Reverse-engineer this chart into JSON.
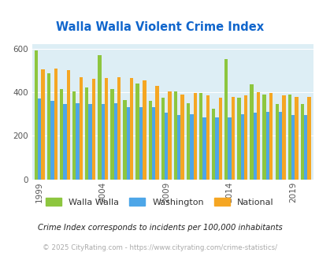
{
  "title": "Walla Walla Violent Crime Index",
  "years": [
    1999,
    2000,
    2001,
    2002,
    2003,
    2004,
    2005,
    2006,
    2007,
    2008,
    2009,
    2010,
    2011,
    2012,
    2013,
    2014,
    2015,
    2016,
    2017,
    2018,
    2019,
    2020
  ],
  "walla_walla": [
    592,
    485,
    415,
    405,
    420,
    570,
    415,
    365,
    440,
    360,
    375,
    405,
    350,
    395,
    325,
    550,
    375,
    435,
    390,
    345,
    390,
    345
  ],
  "washington": [
    370,
    360,
    345,
    348,
    345,
    345,
    348,
    330,
    330,
    330,
    305,
    295,
    300,
    285,
    285,
    285,
    300,
    305,
    310,
    310,
    295,
    295
  ],
  "national": [
    505,
    510,
    500,
    470,
    460,
    465,
    470,
    465,
    455,
    430,
    405,
    390,
    395,
    385,
    375,
    380,
    385,
    400,
    395,
    385,
    380,
    380
  ],
  "bar_colors": {
    "walla_walla": "#8dc63f",
    "washington": "#4da6e8",
    "national": "#f5a623"
  },
  "bg_color": "#ddeef5",
  "ylim": [
    0,
    620
  ],
  "yticks": [
    0,
    200,
    400,
    600
  ],
  "legend_labels": [
    "Walla Walla",
    "Washington",
    "National"
  ],
  "footnote1": "Crime Index corresponds to incidents per 100,000 inhabitants",
  "footnote2": "© 2025 CityRating.com - https://www.cityrating.com/crime-statistics/",
  "title_color": "#1166cc",
  "footnote1_color": "#222222",
  "footnote2_color": "#aaaaaa",
  "tick_years": [
    1999,
    2004,
    2009,
    2014,
    2019
  ]
}
